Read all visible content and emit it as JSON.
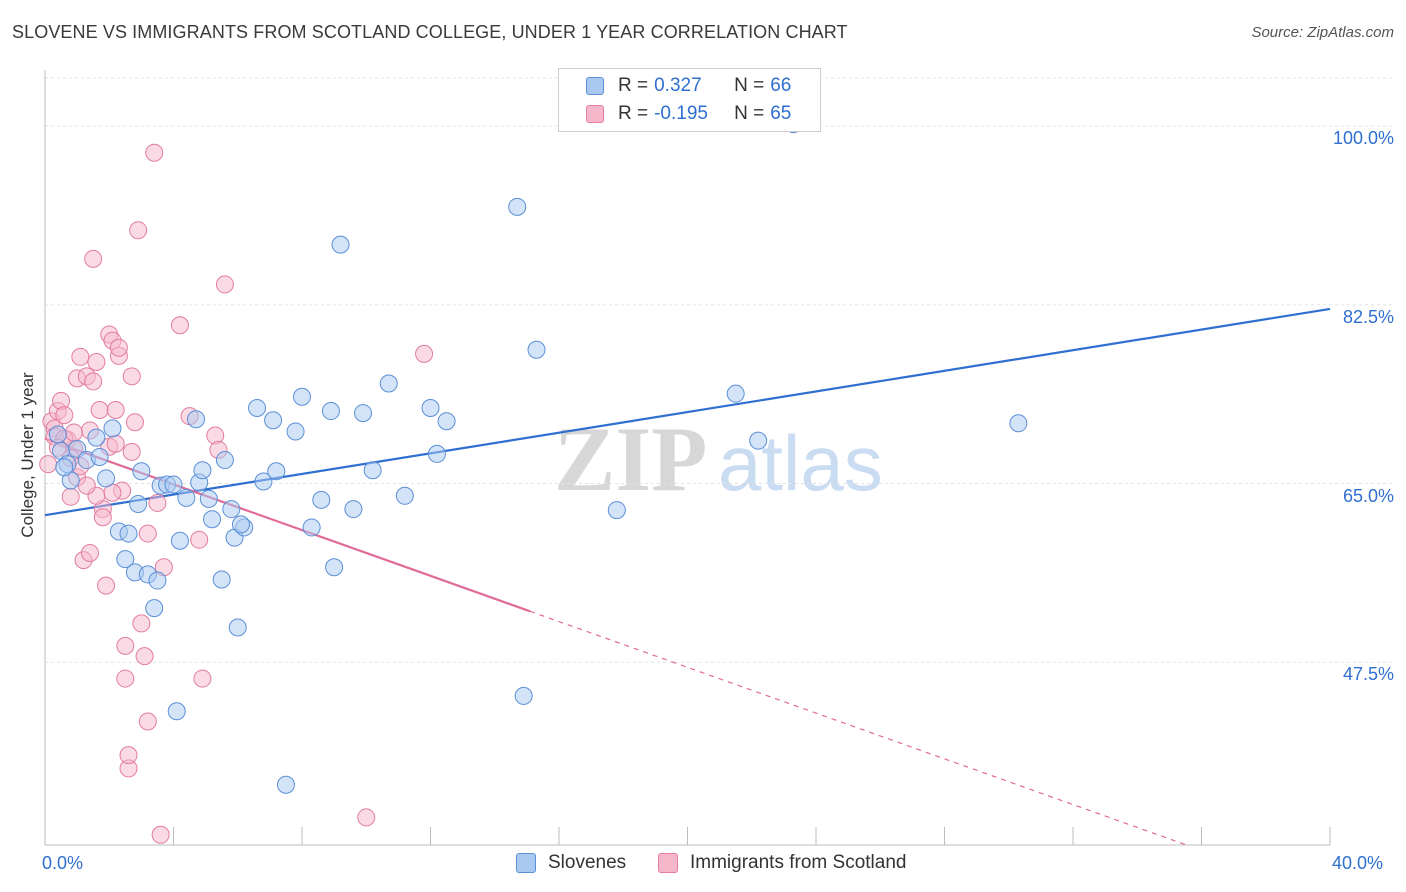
{
  "title": "SLOVENE VS IMMIGRANTS FROM SCOTLAND COLLEGE, UNDER 1 YEAR CORRELATION CHART",
  "source": "Source: ZipAtlas.com",
  "watermark": "ZIPatlas",
  "colors": {
    "blue_fill": "#a9c9f1",
    "blue_stroke": "#5b8fd6",
    "blue_line": "#2f6fd0",
    "pink_fill": "#f6b7cb",
    "pink_stroke": "#e37ca0",
    "pink_line": "#e06a98",
    "tick_text": "#2f6fd0",
    "grid": "#e2e2e2"
  },
  "legend": {
    "rows": [
      {
        "r_label": "R =",
        "r_value": "0.327",
        "n_label": "N =",
        "n_value": "66",
        "color": "#a9c9f1",
        "stroke": "#5b8fd6"
      },
      {
        "r_label": "R =",
        "r_value": "-0.195",
        "n_label": "N =",
        "n_value": "65",
        "color": "#f6b7cb",
        "stroke": "#e37ca0"
      }
    ]
  },
  "bottom_legend": [
    {
      "label": "Slovenes",
      "color": "#a9c9f1",
      "stroke": "#5b8fd6"
    },
    {
      "label": "Immigrants from Scotland",
      "color": "#f6b7cb",
      "stroke": "#e37ca0"
    }
  ],
  "chart_data": {
    "type": "scatter",
    "title": "SLOVENE VS IMMIGRANTS FROM SCOTLAND COLLEGE, UNDER 1 YEAR CORRELATION CHART",
    "xlabel": "",
    "ylabel": "College, Under 1 year",
    "xlim": [
      0,
      40
    ],
    "ylim": [
      29.6,
      105.5
    ],
    "x_tick_labels": [
      {
        "value": 0,
        "label": "0.0%"
      },
      {
        "value": 40,
        "label": "40.0%"
      }
    ],
    "y_tick_labels": [
      {
        "value": 100,
        "label": "100.0%"
      },
      {
        "value": 82.5,
        "label": "82.5%"
      },
      {
        "value": 65,
        "label": "65.0%"
      },
      {
        "value": 47.5,
        "label": "47.5%"
      }
    ],
    "x_minor_ticks": [
      4,
      8,
      12,
      16,
      20,
      24,
      28,
      32,
      36,
      40
    ],
    "grid": true,
    "series": [
      {
        "name": "Slovenes",
        "r": 0.327,
        "n": 66,
        "trend": {
          "x": [
            0,
            40
          ],
          "y": [
            61.9,
            82.1
          ],
          "dashed_from": null
        },
        "points": [
          [
            0.4,
            69.8
          ],
          [
            0.5,
            68.2
          ],
          [
            0.7,
            66.9
          ],
          [
            0.8,
            65.3
          ],
          [
            1.0,
            68.4
          ],
          [
            1.3,
            67.3
          ],
          [
            1.6,
            69.5
          ],
          [
            1.9,
            65.5
          ],
          [
            2.1,
            70.4
          ],
          [
            2.3,
            60.3
          ],
          [
            2.5,
            57.6
          ],
          [
            2.6,
            60.1
          ],
          [
            2.8,
            56.3
          ],
          [
            3.0,
            66.2
          ],
          [
            3.2,
            56.1
          ],
          [
            3.4,
            52.8
          ],
          [
            3.5,
            55.5
          ],
          [
            3.6,
            64.8
          ],
          [
            3.8,
            64.9
          ],
          [
            4.0,
            64.9
          ],
          [
            4.1,
            42.7
          ],
          [
            4.2,
            59.4
          ],
          [
            4.4,
            63.6
          ],
          [
            4.7,
            71.3
          ],
          [
            4.8,
            65.1
          ],
          [
            4.9,
            66.3
          ],
          [
            5.1,
            63.5
          ],
          [
            5.2,
            61.5
          ],
          [
            5.5,
            55.6
          ],
          [
            5.6,
            67.3
          ],
          [
            5.8,
            62.5
          ],
          [
            5.9,
            59.7
          ],
          [
            6.0,
            50.9
          ],
          [
            6.2,
            60.7
          ],
          [
            6.6,
            72.4
          ],
          [
            6.8,
            65.2
          ],
          [
            7.1,
            71.2
          ],
          [
            7.2,
            66.2
          ],
          [
            7.5,
            35.5
          ],
          [
            7.8,
            70.1
          ],
          [
            8.0,
            73.5
          ],
          [
            8.3,
            60.7
          ],
          [
            8.6,
            63.4
          ],
          [
            8.9,
            72.1
          ],
          [
            9.0,
            56.8
          ],
          [
            9.2,
            88.4
          ],
          [
            9.6,
            62.5
          ],
          [
            9.9,
            71.9
          ],
          [
            10.2,
            66.3
          ],
          [
            10.7,
            74.8
          ],
          [
            11.2,
            63.8
          ],
          [
            12.0,
            72.4
          ],
          [
            12.2,
            67.9
          ],
          [
            12.5,
            71.1
          ],
          [
            14.7,
            92.1
          ],
          [
            14.9,
            44.2
          ],
          [
            15.3,
            78.1
          ],
          [
            17.8,
            62.4
          ],
          [
            21.5,
            73.8
          ],
          [
            22.2,
            69.2
          ],
          [
            23.3,
            100.2
          ],
          [
            30.3,
            70.9
          ],
          [
            0.6,
            66.6
          ],
          [
            1.7,
            67.6
          ],
          [
            2.9,
            63.0
          ],
          [
            6.1,
            61.0
          ]
        ]
      },
      {
        "name": "Immigrants from Scotland",
        "r": -0.195,
        "n": 65,
        "trend": {
          "x": [
            0,
            40
          ],
          "y": [
            69.4,
            24.6
          ],
          "solid_until_x": 15.1
        },
        "points": [
          [
            0.1,
            66.9
          ],
          [
            0.2,
            71.1
          ],
          [
            0.3,
            70.4
          ],
          [
            0.4,
            72.1
          ],
          [
            0.5,
            73.1
          ],
          [
            0.6,
            71.7
          ],
          [
            0.7,
            69.3
          ],
          [
            0.8,
            63.7
          ],
          [
            0.9,
            68.4
          ],
          [
            1.0,
            65.6
          ],
          [
            1.0,
            75.3
          ],
          [
            1.1,
            77.4
          ],
          [
            1.2,
            57.5
          ],
          [
            1.3,
            75.5
          ],
          [
            1.4,
            58.2
          ],
          [
            1.4,
            70.2
          ],
          [
            1.5,
            87.0
          ],
          [
            1.5,
            75.0
          ],
          [
            1.6,
            76.9
          ],
          [
            1.7,
            72.2
          ],
          [
            1.8,
            62.5
          ],
          [
            1.8,
            61.7
          ],
          [
            1.9,
            55.0
          ],
          [
            2.0,
            68.6
          ],
          [
            2.0,
            79.6
          ],
          [
            2.1,
            79.0
          ],
          [
            2.2,
            72.2
          ],
          [
            2.3,
            77.5
          ],
          [
            2.3,
            78.3
          ],
          [
            2.4,
            64.3
          ],
          [
            2.5,
            49.1
          ],
          [
            2.5,
            45.9
          ],
          [
            2.6,
            37.1
          ],
          [
            2.6,
            38.4
          ],
          [
            2.7,
            75.5
          ],
          [
            2.7,
            68.1
          ],
          [
            2.8,
            71.0
          ],
          [
            2.9,
            89.8
          ],
          [
            3.0,
            51.3
          ],
          [
            3.2,
            60.1
          ],
          [
            3.1,
            48.1
          ],
          [
            3.2,
            41.7
          ],
          [
            3.4,
            97.4
          ],
          [
            3.6,
            30.6
          ],
          [
            3.7,
            56.8
          ],
          [
            4.2,
            80.5
          ],
          [
            4.5,
            71.6
          ],
          [
            4.8,
            59.5
          ],
          [
            4.9,
            45.9
          ],
          [
            5.3,
            69.7
          ],
          [
            5.4,
            68.3
          ],
          [
            5.6,
            84.5
          ],
          [
            10.0,
            32.3
          ],
          [
            11.8,
            77.7
          ],
          [
            0.3,
            69.6
          ],
          [
            0.6,
            69.4
          ],
          [
            1.6,
            63.8
          ],
          [
            2.1,
            64.1
          ],
          [
            0.8,
            67.5
          ],
          [
            0.9,
            70.0
          ],
          [
            1.1,
            66.7
          ],
          [
            2.2,
            68.9
          ],
          [
            3.5,
            63.1
          ],
          [
            0.4,
            68.5
          ],
          [
            1.3,
            64.8
          ]
        ]
      }
    ]
  }
}
